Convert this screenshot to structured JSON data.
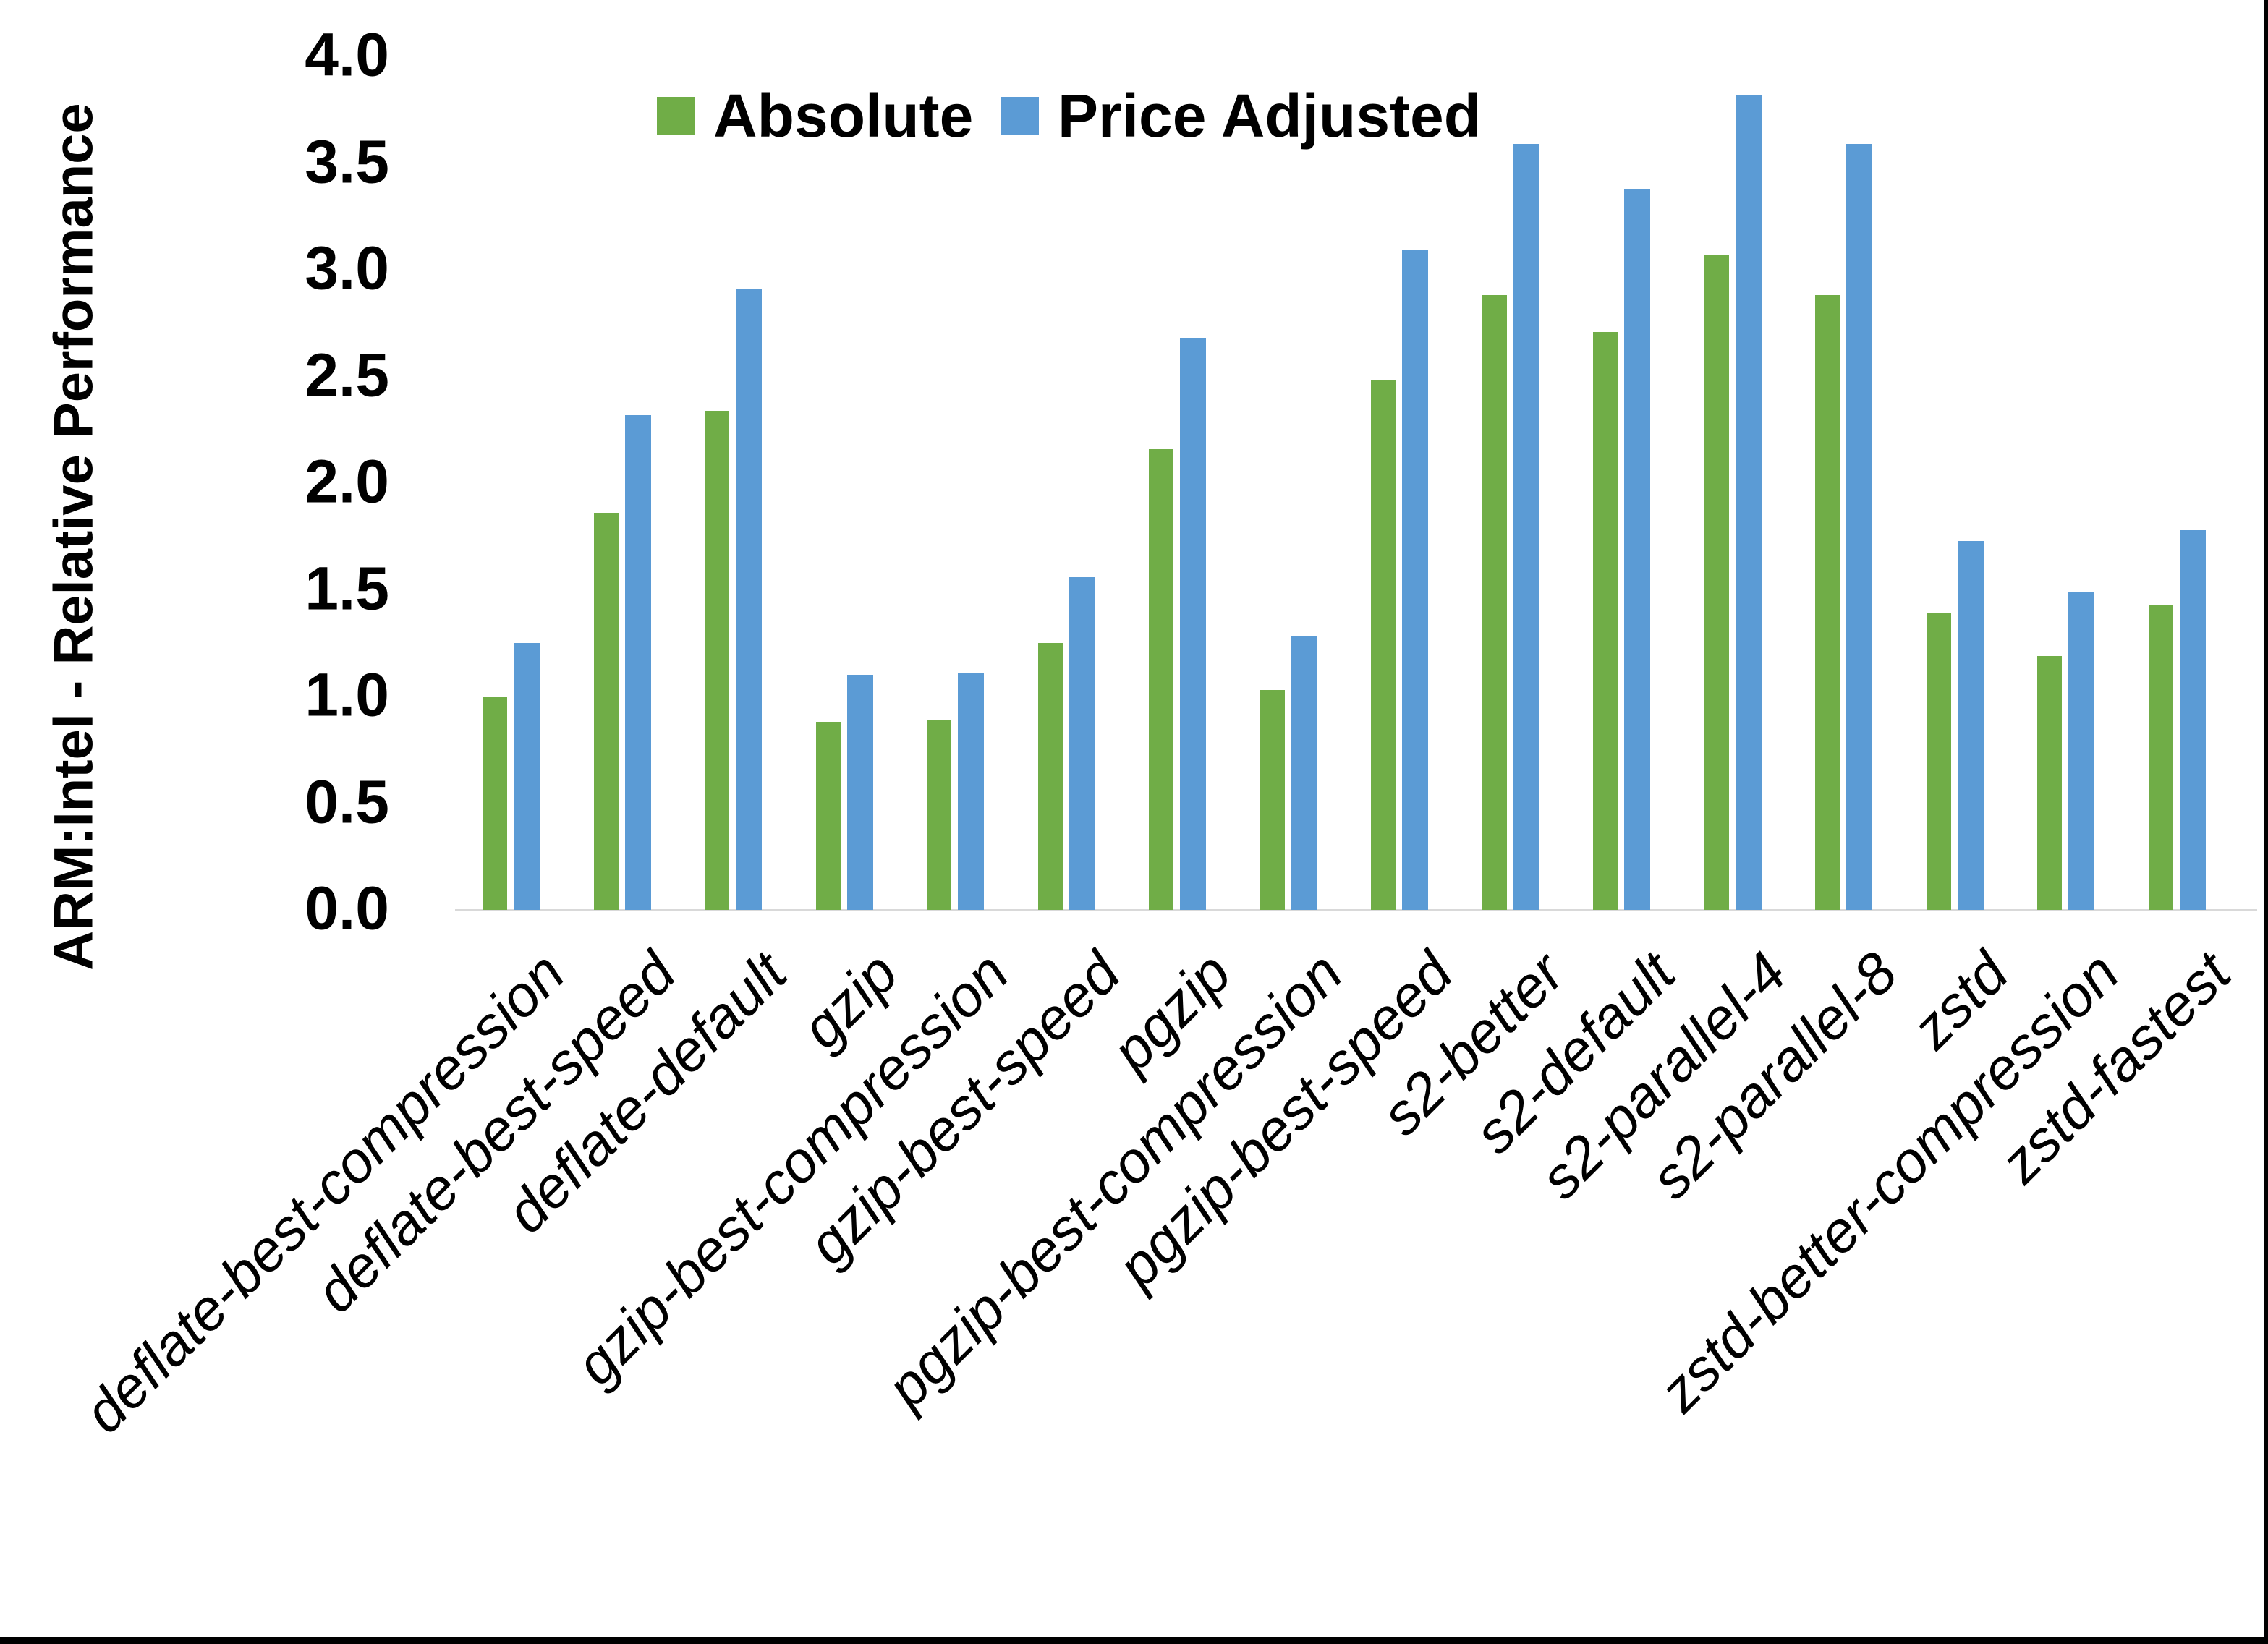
{
  "chart_data": {
    "type": "bar",
    "title": "",
    "ylabel": "ARM:Intel - Relative Performance",
    "xlabel": "",
    "ylim": [
      0.0,
      4.0
    ],
    "ytick_step": 0.5,
    "ytick_labels": [
      "0.0",
      "0.5",
      "1.0",
      "1.5",
      "2.0",
      "2.5",
      "3.0",
      "3.5",
      "4.0"
    ],
    "grid": false,
    "legend_position": "top-center",
    "categories": [
      "deflate-best-compression",
      "deflate-best-speed",
      "deflate-default",
      "gzip",
      "gzip-best-compression",
      "gzip-best-speed",
      "pgzip",
      "pgzip-best-compression",
      "pgzip-best-speed",
      "s2-better",
      "s2-default",
      "s2-parallel-4",
      "s2-parallel-8",
      "zstd",
      "zstd-better-compression",
      "zstd-fastest"
    ],
    "series": [
      {
        "name": "Absolute",
        "color": "#70AD47",
        "values": [
          1.0,
          1.86,
          2.34,
          0.88,
          0.89,
          1.25,
          2.16,
          1.03,
          2.48,
          2.88,
          2.71,
          3.07,
          2.88,
          1.39,
          1.19,
          1.43
        ]
      },
      {
        "name": "Price Adjusted",
        "color": "#5B9BD5",
        "values": [
          1.25,
          2.32,
          2.91,
          1.1,
          1.11,
          1.56,
          2.68,
          1.28,
          3.09,
          3.59,
          3.38,
          3.82,
          3.59,
          1.73,
          1.49,
          1.78
        ]
      }
    ],
    "axis_line_color": "#D9D9D9",
    "background_color": "#FFFFFF",
    "border_color": "#000000",
    "text_color": "#000000"
  }
}
